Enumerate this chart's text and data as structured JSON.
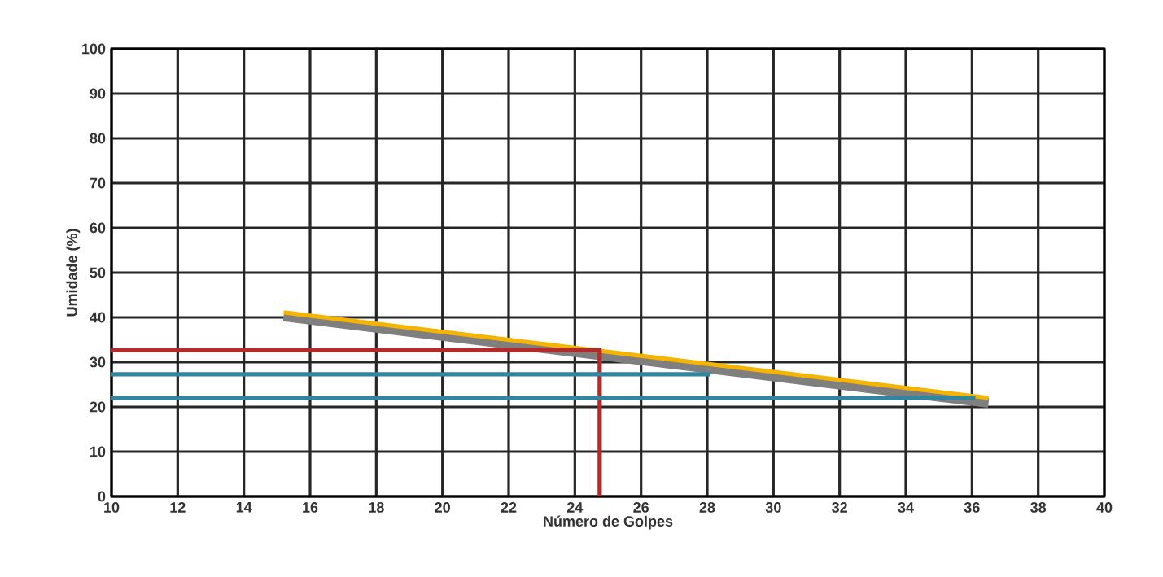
{
  "chart_data": {
    "type": "line",
    "xlabel": "Número de Golpes",
    "ylabel": "Umidade (%)",
    "xlim": [
      10,
      40
    ],
    "ylim": [
      0,
      100
    ],
    "xticks": [
      10,
      12,
      14,
      16,
      18,
      20,
      22,
      24,
      26,
      28,
      30,
      32,
      34,
      36,
      38,
      40
    ],
    "yticks": [
      0,
      10,
      20,
      30,
      40,
      50,
      60,
      70,
      80,
      90,
      100
    ],
    "grid": true,
    "marker": "none",
    "line_style": "solid",
    "series": [
      {
        "color": "#7f7f7f",
        "x": [
          15.2,
          36.5
        ],
        "values": [
          40.2,
          20.9
        ]
      },
      {
        "color": "#f5b400",
        "x": [
          15.2,
          36.5
        ],
        "values": [
          41.1,
          22.0
        ]
      },
      {
        "color": "#b22a2a",
        "x": [
          10,
          24.75,
          24.75
        ],
        "values": [
          32.7,
          32.7,
          0
        ]
      },
      {
        "color": "#2e86a0",
        "x": [
          10,
          28.1
        ],
        "values": [
          27.3,
          27.3
        ]
      },
      {
        "color": "#2e86a0",
        "x": [
          10,
          36.1
        ],
        "values": [
          22.0,
          22.0
        ]
      }
    ]
  }
}
